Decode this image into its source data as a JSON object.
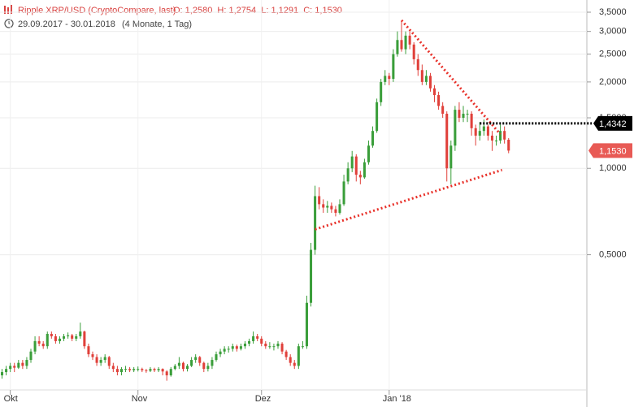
{
  "chart_data": {
    "type": "candlestick",
    "title": "Ripple XRP/USD (CryptoCompare, last)",
    "summary": "O: 1,2580  H: 1,2754  L: 1,1291  C: 1,1530",
    "date_range": "29.09.2017 - 30.01.2018",
    "duration": "(4 Monate, 1 Tag)",
    "log_y": true,
    "grid": true,
    "up_color": "#3a9e3a",
    "down_color": "#e0403a",
    "ylim": [
      0.169,
      3.86
    ],
    "yticks": [
      {
        "value": 3.5,
        "label": "3,5000"
      },
      {
        "value": 3.0,
        "label": "3,0000"
      },
      {
        "value": 2.5,
        "label": "2,5000"
      },
      {
        "value": 2.0,
        "label": "2,0000"
      },
      {
        "value": 1.5,
        "label": "1,5000"
      },
      {
        "value": 1.0,
        "label": "1,0000"
      },
      {
        "value": 0.5,
        "label": "0,5000"
      }
    ],
    "xlim": [
      -0.5,
      142
    ],
    "xticks": [
      {
        "value": 2,
        "label": "Okt"
      },
      {
        "value": 33,
        "label": "Nov"
      },
      {
        "value": 63,
        "label": "Dez"
      },
      {
        "value": 94,
        "label": "Jan '18"
      }
    ],
    "hline": {
      "value": 1.4342,
      "label": "1,4342",
      "color": "#000000"
    },
    "last": {
      "value": 1.153,
      "label": "1,1530",
      "color": "#e85a55"
    },
    "trendlines": [
      {
        "color": "#e8312a",
        "points": [
          [
            97,
            3.28
          ],
          [
            121,
            1.315
          ]
        ]
      },
      {
        "color": "#e8312a",
        "points": [
          [
            76,
            0.613
          ],
          [
            121.4,
            0.987
          ]
        ]
      }
    ],
    "ohlc": [
      [
        0.19,
        0.2,
        0.185,
        0.195
      ],
      [
        0.195,
        0.205,
        0.19,
        0.2
      ],
      [
        0.2,
        0.21,
        0.195,
        0.205
      ],
      [
        0.205,
        0.21,
        0.195,
        0.202
      ],
      [
        0.202,
        0.215,
        0.2,
        0.21
      ],
      [
        0.21,
        0.215,
        0.2,
        0.205
      ],
      [
        0.205,
        0.22,
        0.2,
        0.215
      ],
      [
        0.215,
        0.235,
        0.21,
        0.23
      ],
      [
        0.23,
        0.26,
        0.225,
        0.25
      ],
      [
        0.25,
        0.26,
        0.24,
        0.245
      ],
      [
        0.245,
        0.25,
        0.235,
        0.24
      ],
      [
        0.24,
        0.27,
        0.235,
        0.265
      ],
      [
        0.265,
        0.27,
        0.255,
        0.26
      ],
      [
        0.26,
        0.265,
        0.245,
        0.25
      ],
      [
        0.25,
        0.26,
        0.245,
        0.255
      ],
      [
        0.255,
        0.265,
        0.25,
        0.26
      ],
      [
        0.26,
        0.268,
        0.255,
        0.262
      ],
      [
        0.262,
        0.265,
        0.25,
        0.255
      ],
      [
        0.255,
        0.265,
        0.25,
        0.26
      ],
      [
        0.26,
        0.29,
        0.255,
        0.27
      ],
      [
        0.27,
        0.272,
        0.235,
        0.24
      ],
      [
        0.24,
        0.245,
        0.22,
        0.225
      ],
      [
        0.225,
        0.23,
        0.215,
        0.22
      ],
      [
        0.22,
        0.225,
        0.205,
        0.21
      ],
      [
        0.21,
        0.22,
        0.205,
        0.215
      ],
      [
        0.215,
        0.225,
        0.21,
        0.22
      ],
      [
        0.22,
        0.222,
        0.2,
        0.205
      ],
      [
        0.205,
        0.21,
        0.195,
        0.2
      ],
      [
        0.2,
        0.205,
        0.19,
        0.195
      ],
      [
        0.195,
        0.203,
        0.19,
        0.2
      ],
      [
        0.2,
        0.205,
        0.195,
        0.2
      ],
      [
        0.2,
        0.203,
        0.195,
        0.198
      ],
      [
        0.198,
        0.203,
        0.195,
        0.2
      ],
      [
        0.2,
        0.204,
        0.196,
        0.2
      ],
      [
        0.2,
        0.202,
        0.195,
        0.198
      ],
      [
        0.198,
        0.2,
        0.194,
        0.197
      ],
      [
        0.197,
        0.203,
        0.195,
        0.2
      ],
      [
        0.2,
        0.202,
        0.195,
        0.198
      ],
      [
        0.198,
        0.203,
        0.195,
        0.2
      ],
      [
        0.2,
        0.201,
        0.19,
        0.196
      ],
      [
        0.196,
        0.198,
        0.182,
        0.19
      ],
      [
        0.19,
        0.203,
        0.188,
        0.2
      ],
      [
        0.2,
        0.208,
        0.198,
        0.205
      ],
      [
        0.205,
        0.22,
        0.2,
        0.21
      ],
      [
        0.21,
        0.212,
        0.196,
        0.2
      ],
      [
        0.2,
        0.208,
        0.196,
        0.205
      ],
      [
        0.205,
        0.22,
        0.203,
        0.215
      ],
      [
        0.215,
        0.225,
        0.21,
        0.22
      ],
      [
        0.22,
        0.222,
        0.205,
        0.21
      ],
      [
        0.21,
        0.212,
        0.195,
        0.2
      ],
      [
        0.2,
        0.21,
        0.196,
        0.205
      ],
      [
        0.205,
        0.22,
        0.2,
        0.215
      ],
      [
        0.215,
        0.23,
        0.212,
        0.225
      ],
      [
        0.225,
        0.235,
        0.22,
        0.23
      ],
      [
        0.23,
        0.24,
        0.225,
        0.235
      ],
      [
        0.235,
        0.24,
        0.228,
        0.235
      ],
      [
        0.235,
        0.245,
        0.23,
        0.24
      ],
      [
        0.24,
        0.243,
        0.23,
        0.235
      ],
      [
        0.235,
        0.245,
        0.232,
        0.24
      ],
      [
        0.24,
        0.25,
        0.235,
        0.245
      ],
      [
        0.245,
        0.255,
        0.24,
        0.25
      ],
      [
        0.25,
        0.27,
        0.245,
        0.26
      ],
      [
        0.26,
        0.265,
        0.25,
        0.255
      ],
      [
        0.255,
        0.26,
        0.24,
        0.245
      ],
      [
        0.245,
        0.25,
        0.235,
        0.24
      ],
      [
        0.24,
        0.248,
        0.235,
        0.24
      ],
      [
        0.24,
        0.245,
        0.232,
        0.24
      ],
      [
        0.24,
        0.25,
        0.235,
        0.245
      ],
      [
        0.245,
        0.248,
        0.225,
        0.23
      ],
      [
        0.23,
        0.233,
        0.215,
        0.22
      ],
      [
        0.22,
        0.225,
        0.205,
        0.21
      ],
      [
        0.21,
        0.215,
        0.2,
        0.205
      ],
      [
        0.205,
        0.245,
        0.2,
        0.24
      ],
      [
        0.24,
        0.25,
        0.235,
        0.24
      ],
      [
        0.24,
        0.36,
        0.235,
        0.34
      ],
      [
        0.34,
        0.55,
        0.33,
        0.52
      ],
      [
        0.52,
        0.87,
        0.5,
        0.8
      ],
      [
        0.8,
        0.86,
        0.72,
        0.75
      ],
      [
        0.75,
        0.78,
        0.7,
        0.73
      ],
      [
        0.73,
        0.77,
        0.7,
        0.74
      ],
      [
        0.74,
        0.76,
        0.7,
        0.72
      ],
      [
        0.72,
        0.74,
        0.68,
        0.7
      ],
      [
        0.7,
        0.78,
        0.69,
        0.75
      ],
      [
        0.75,
        0.95,
        0.74,
        0.9
      ],
      [
        0.9,
        1.05,
        0.88,
        1.0
      ],
      [
        1.0,
        1.15,
        0.97,
        1.1
      ],
      [
        1.1,
        1.12,
        0.9,
        0.95
      ],
      [
        0.95,
        0.98,
        0.88,
        0.93
      ],
      [
        0.93,
        1.08,
        0.92,
        1.05
      ],
      [
        1.05,
        1.25,
        1.03,
        1.2
      ],
      [
        1.2,
        1.4,
        1.18,
        1.35
      ],
      [
        1.35,
        1.75,
        1.33,
        1.7
      ],
      [
        1.7,
        2.05,
        1.65,
        2.0
      ],
      [
        2.0,
        2.2,
        1.95,
        2.1
      ],
      [
        2.1,
        2.15,
        1.95,
        2.05
      ],
      [
        2.05,
        2.6,
        2.0,
        2.5
      ],
      [
        2.5,
        3.0,
        2.45,
        2.8
      ],
      [
        2.8,
        3.25,
        2.55,
        2.6
      ],
      [
        2.6,
        3.0,
        2.5,
        2.9
      ],
      [
        2.9,
        3.0,
        2.6,
        2.7
      ],
      [
        2.7,
        2.75,
        2.3,
        2.4
      ],
      [
        2.4,
        2.5,
        2.1,
        2.2
      ],
      [
        2.2,
        2.3,
        1.95,
        2.0
      ],
      [
        2.0,
        2.2,
        1.95,
        2.1
      ],
      [
        2.1,
        2.15,
        1.85,
        1.9
      ],
      [
        1.9,
        1.95,
        1.7,
        1.8
      ],
      [
        1.8,
        1.85,
        1.6,
        1.65
      ],
      [
        1.65,
        1.7,
        1.5,
        1.55
      ],
      [
        1.55,
        1.58,
        0.9,
        1.0
      ],
      [
        1.0,
        1.25,
        0.88,
        1.2
      ],
      [
        1.2,
        1.65,
        1.15,
        1.6
      ],
      [
        1.6,
        1.7,
        1.45,
        1.5
      ],
      [
        1.5,
        1.65,
        1.45,
        1.55
      ],
      [
        1.55,
        1.6,
        1.45,
        1.55
      ],
      [
        1.55,
        1.58,
        1.3,
        1.38
      ],
      [
        1.38,
        1.42,
        1.2,
        1.3
      ],
      [
        1.3,
        1.45,
        1.25,
        1.35
      ],
      [
        1.35,
        1.48,
        1.3,
        1.4
      ],
      [
        1.4,
        1.42,
        1.25,
        1.3
      ],
      [
        1.3,
        1.35,
        1.15,
        1.25
      ],
      [
        1.25,
        1.3,
        1.2,
        1.25
      ],
      [
        1.25,
        1.42,
        1.22,
        1.35
      ],
      [
        1.35,
        1.4,
        1.22,
        1.26
      ],
      [
        1.258,
        1.2754,
        1.1291,
        1.153
      ]
    ]
  }
}
